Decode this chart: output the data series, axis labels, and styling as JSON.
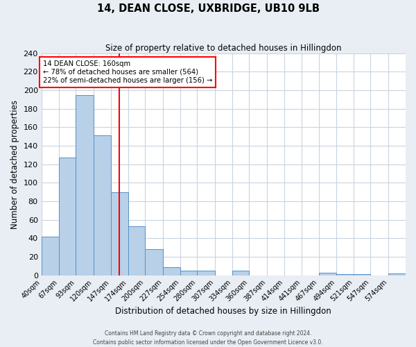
{
  "title": "14, DEAN CLOSE, UXBRIDGE, UB10 9LB",
  "subtitle": "Size of property relative to detached houses in Hillingdon",
  "xlabel": "Distribution of detached houses by size in Hillingdon",
  "ylabel": "Number of detached properties",
  "footer_line1": "Contains HM Land Registry data © Crown copyright and database right 2024.",
  "footer_line2": "Contains public sector information licensed under the Open Government Licence v3.0.",
  "bin_labels": [
    "40sqm",
    "67sqm",
    "93sqm",
    "120sqm",
    "147sqm",
    "174sqm",
    "200sqm",
    "227sqm",
    "254sqm",
    "280sqm",
    "307sqm",
    "334sqm",
    "360sqm",
    "387sqm",
    "414sqm",
    "441sqm",
    "467sqm",
    "494sqm",
    "521sqm",
    "547sqm",
    "574sqm"
  ],
  "bin_edges": [
    40,
    67,
    93,
    120,
    147,
    174,
    200,
    227,
    254,
    280,
    307,
    334,
    360,
    387,
    414,
    441,
    467,
    494,
    521,
    547,
    574
  ],
  "bar_heights": [
    42,
    127,
    195,
    151,
    90,
    53,
    28,
    9,
    5,
    5,
    0,
    5,
    0,
    0,
    0,
    0,
    3,
    1,
    1,
    0,
    2
  ],
  "bar_color": "#b8d0e8",
  "bar_edge_color": "#5590c8",
  "vline_x": 160,
  "vline_color": "red",
  "annotation_title": "14 DEAN CLOSE: 160sqm",
  "annotation_line1": "← 78% of detached houses are smaller (564)",
  "annotation_line2": "22% of semi-detached houses are larger (156) →",
  "annotation_box_color": "white",
  "annotation_box_edge": "red",
  "ylim": [
    0,
    240
  ],
  "yticks": [
    0,
    20,
    40,
    60,
    80,
    100,
    120,
    140,
    160,
    180,
    200,
    220,
    240
  ],
  "bg_color": "#e8eef4",
  "plot_bg_color": "white",
  "grid_color": "#c8d4e0"
}
